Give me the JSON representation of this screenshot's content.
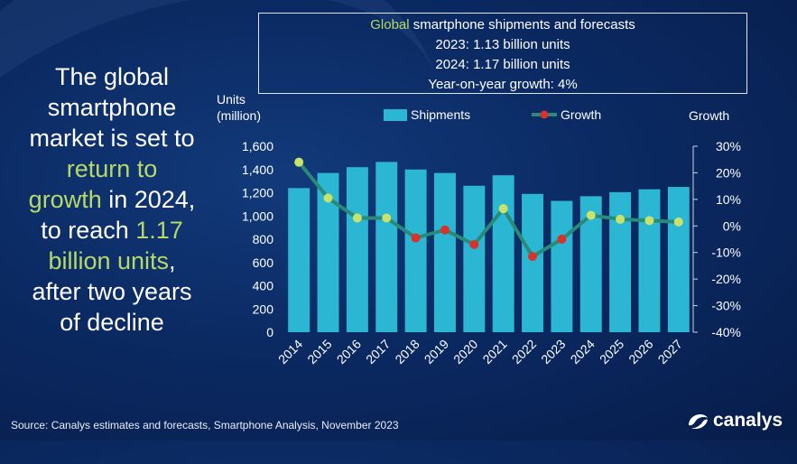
{
  "headline": {
    "line1": "The global",
    "line2": "smartphone",
    "line3": "market is set to",
    "line4_hl": "return to",
    "line5_hl": "growth",
    "line5_rest": " in 2024,",
    "line6_pre": "to reach ",
    "line6_hl": "1.17",
    "line7_hl": "billion units",
    "line7_rest": ",",
    "line8": "after two years",
    "line9": "of decline"
  },
  "info_box": {
    "title_hl": "Global",
    "title_rest": " smartphone shipments and forecasts",
    "line_2023": "2023: 1.13 billion units",
    "line_2024": "2024: 1.17 billion units",
    "line_growth": "Year-on-year growth: 4%"
  },
  "source": "Source: Canalys estimates and forecasts, Smartphone Analysis, November 2023",
  "logo": {
    "text": "canalys",
    "icon": "canalys-logo-icon"
  },
  "colors": {
    "bar": "#2bb7d3",
    "line": "#2a8a7a",
    "marker_positive": "#c9e36a",
    "marker_negative": "#d9322b",
    "highlight_text": "#b6d96a"
  },
  "chart_data": {
    "type": "bar",
    "categories": [
      "2014",
      "2015",
      "2016",
      "2017",
      "2018",
      "2019",
      "2020",
      "2021",
      "2022",
      "2023",
      "2024",
      "2025",
      "2026",
      "2027"
    ],
    "series": [
      {
        "name": "Shipments",
        "type": "bar",
        "axis": "left",
        "values": [
          1240,
          1370,
          1420,
          1465,
          1400,
          1370,
          1260,
          1350,
          1190,
          1130,
          1170,
          1205,
          1230,
          1250
        ]
      },
      {
        "name": "Growth",
        "type": "line",
        "axis": "right",
        "values": [
          24,
          10.5,
          3,
          3,
          -4.5,
          -1.5,
          -7,
          6.5,
          -11.5,
          -5,
          4,
          2.5,
          2,
          1.5
        ]
      }
    ],
    "ylabel_left_line1": "Units",
    "ylabel_left_line2": "(million)",
    "ylabel_right": "Growth",
    "ylim_left": [
      0,
      1600
    ],
    "yticks_left": [
      "0",
      "200",
      "400",
      "600",
      "800",
      "1,000",
      "1,200",
      "1,400",
      "1,600"
    ],
    "ylim_right": [
      -40,
      30
    ],
    "yticks_right": [
      "-40%",
      "-30%",
      "-20%",
      "-10%",
      "0%",
      "10%",
      "20%",
      "30%"
    ],
    "legend": [
      "Shipments",
      "Growth"
    ],
    "legend_position": "top",
    "grid": false
  }
}
